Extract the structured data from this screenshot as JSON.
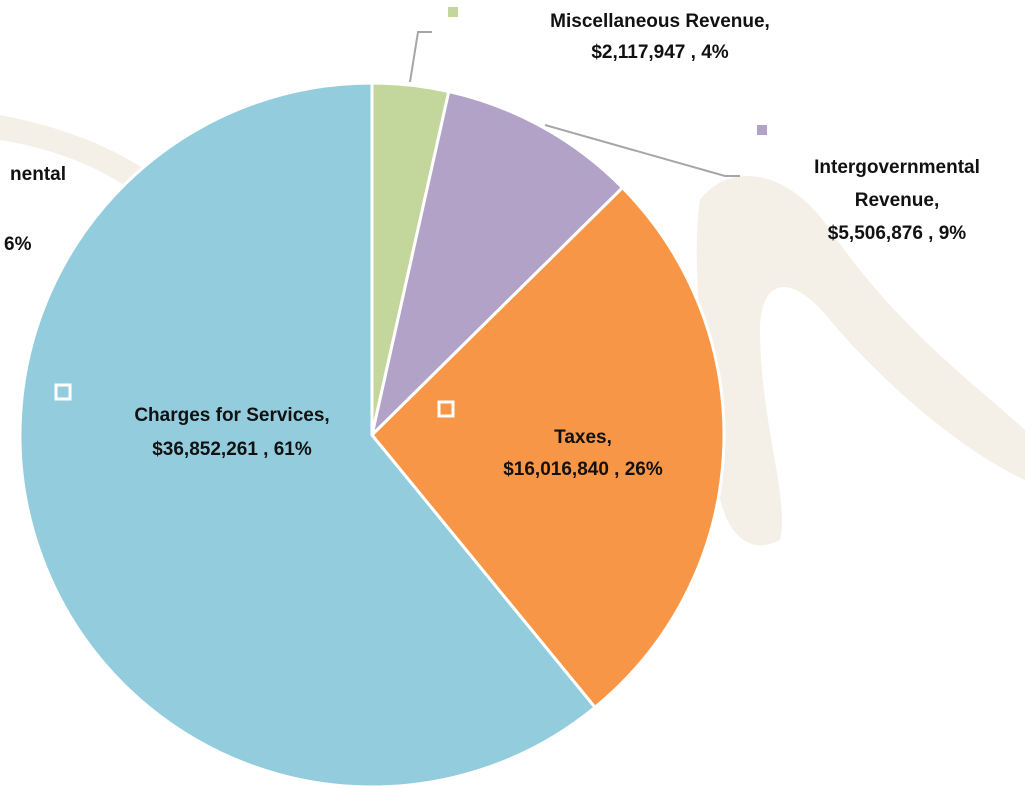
{
  "chart_data": {
    "type": "pie",
    "categories": [
      "Miscellaneous Revenue,",
      "Intergovernmental Revenue,",
      "Taxes,",
      "Charges for Services,"
    ],
    "values": [
      2117947,
      5506876,
      16016840,
      36852261
    ],
    "value_labels": [
      "$2,117,947 , 4%",
      "$5,506,876 , 9%",
      "$16,016,840 , 26%",
      "$36,852,261 , 61%"
    ],
    "colors": [
      "#c3d69b",
      "#b2a2c7",
      "#f79646",
      "#93cddd"
    ],
    "annotations": [
      "nental",
      "6%"
    ]
  }
}
